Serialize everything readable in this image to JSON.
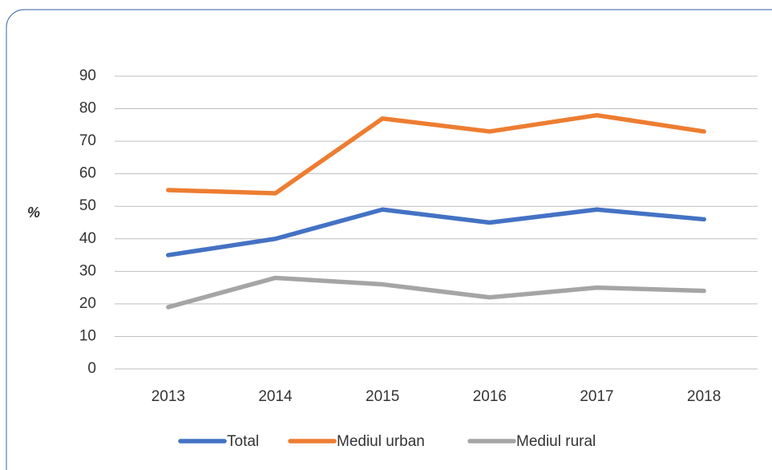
{
  "chart_data": {
    "type": "line",
    "y_label": "%",
    "categories": [
      "2013",
      "2014",
      "2015",
      "2016",
      "2017",
      "2018"
    ],
    "series": [
      {
        "name": "Total",
        "color": "#4472c4",
        "values": [
          35,
          40,
          49,
          45,
          49,
          46
        ]
      },
      {
        "name": "Mediul urban",
        "color": "#ed7d31",
        "values": [
          55,
          54,
          77,
          73,
          78,
          73
        ]
      },
      {
        "name": "Mediul rural",
        "color": "#a5a5a5",
        "values": [
          19,
          28,
          26,
          22,
          25,
          24
        ]
      }
    ],
    "ylim": [
      0,
      90
    ],
    "yticks": [
      0,
      10,
      20,
      30,
      40,
      50,
      60,
      70,
      80,
      90
    ],
    "grid": true,
    "legend": "bottom"
  }
}
